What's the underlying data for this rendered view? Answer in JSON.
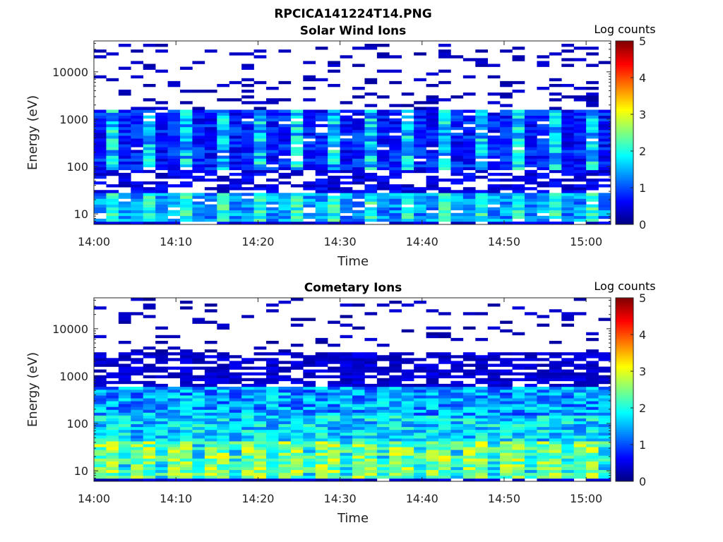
{
  "figure_title": "RPCICA141224T14.PNG",
  "chart_data": [
    {
      "type": "heatmap",
      "title": "Solar Wind Ions",
      "xlabel": "Time",
      "ylabel": "Energy (eV)",
      "colorbar_label": "Log counts",
      "colorbar_ticks": [
        "0",
        "1",
        "2",
        "3",
        "4",
        "5"
      ],
      "color_range": [
        0,
        5
      ],
      "colormap": "jet",
      "yscale": "log",
      "ylim": [
        6,
        45000
      ],
      "y_ticks": [
        10,
        100,
        1000,
        10000
      ],
      "y_tick_labels": [
        "10",
        "100",
        "1000",
        "10000"
      ],
      "x_ticks": [
        "14:00",
        "14:10",
        "14:20",
        "14:30",
        "14:40",
        "14:50",
        "15:00"
      ],
      "x_range_minutes": [
        0,
        63
      ],
      "pattern": "solar_wind"
    },
    {
      "type": "heatmap",
      "title": "Cometary Ions",
      "xlabel": "Time",
      "ylabel": "Energy (eV)",
      "colorbar_label": "Log counts",
      "colorbar_ticks": [
        "0",
        "1",
        "2",
        "3",
        "4",
        "5"
      ],
      "color_range": [
        0,
        5
      ],
      "colormap": "jet",
      "yscale": "log",
      "ylim": [
        6,
        45000
      ],
      "y_ticks": [
        10,
        100,
        1000,
        10000
      ],
      "y_tick_labels": [
        "10",
        "100",
        "1000",
        "10000"
      ],
      "x_ticks": [
        "14:00",
        "14:10",
        "14:20",
        "14:30",
        "14:40",
        "14:50",
        "15:00"
      ],
      "x_range_minutes": [
        0,
        63
      ],
      "pattern": "cometary"
    }
  ]
}
